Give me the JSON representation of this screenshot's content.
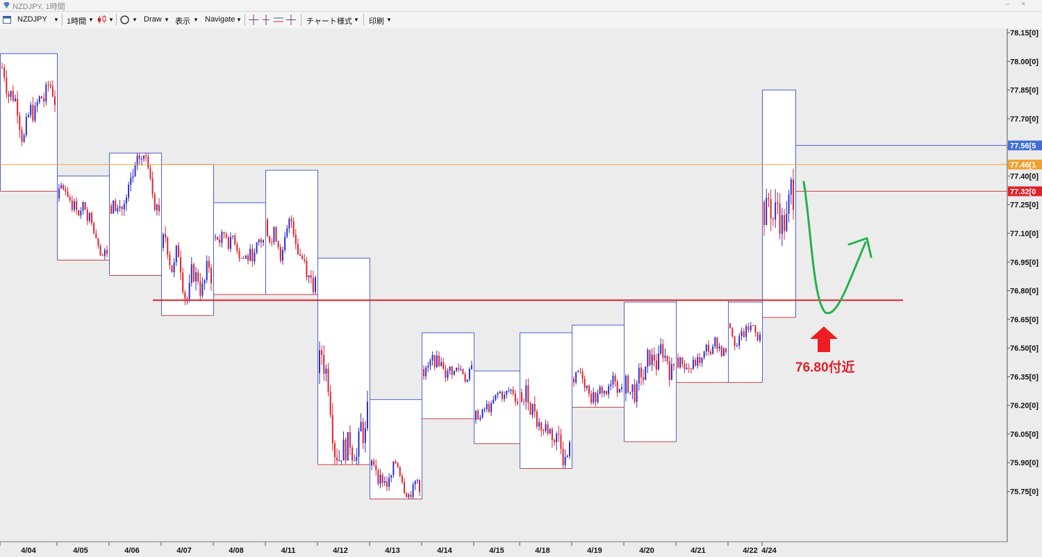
{
  "window": {
    "title": "NZDJPY, 1時間",
    "minimize": "–",
    "close": "×"
  },
  "toolbar": {
    "symbol": "NZDJPY",
    "timeframe": "1時間",
    "draw": "Draw",
    "display": "表示",
    "navigate": "Navigate",
    "chart_style": "チャート様式",
    "print": "印刷"
  },
  "colors": {
    "bull": "#2b2bcf",
    "bear": "#e0202a",
    "bid_line": "#f0a030",
    "support": "#e0202a",
    "arrow_up": "#ee1c24",
    "annotation": "#e0202a",
    "green_curve": "#22b14c"
  },
  "annotation": {
    "support_label": "76.80付近"
  },
  "price_tags": {
    "ask": "77.56[5",
    "last": "77.46[1",
    "bid": "77.32[0"
  },
  "chart_data": {
    "type": "candlestick",
    "symbol": "NZDJPY",
    "timeframe": "1時間",
    "y_ticks": [
      78.15,
      78.0,
      77.85,
      77.7,
      77.55,
      77.4,
      77.25,
      77.1,
      76.95,
      76.8,
      76.65,
      76.5,
      76.35,
      76.2,
      76.05,
      75.9,
      75.75
    ],
    "y_tick_labels": [
      "78.15[0]",
      "78.00[0]",
      "77.85[0]",
      "77.70[0]",
      "",
      "77.40[0]",
      "77.25[0]",
      "77.10[0]",
      "76.95[0]",
      "76.80[0]",
      "76.65[0]",
      "76.50[0]",
      "76.35[0]",
      "76.20[0]",
      "76.05[0]",
      "75.90[0]",
      "75.75[0]"
    ],
    "ylim": [
      75.68,
      78.18
    ],
    "x_labels": [
      "4/04",
      "4/05",
      "4/06",
      "4/07",
      "4/08",
      "4/11",
      "4/12",
      "4/13",
      "4/14",
      "4/15",
      "4/18",
      "4/19",
      "4/20",
      "4/21",
      "4/22",
      "4/24"
    ],
    "support_level": 76.75,
    "current_prices": {
      "ask": 77.56,
      "last": 77.46,
      "bid": 77.32
    },
    "daily_ranges": [
      {
        "high": 78.04,
        "low": 77.32
      },
      {
        "high": 77.4,
        "low": 76.96
      },
      {
        "high": 77.52,
        "low": 76.88
      },
      {
        "high": 77.46,
        "low": 76.67
      },
      {
        "high": 77.26,
        "low": 76.78
      },
      {
        "high": 77.43,
        "low": 76.78
      },
      {
        "high": 76.97,
        "low": 75.89
      },
      {
        "high": 76.23,
        "low": 75.71
      },
      {
        "high": 76.58,
        "low": 76.13
      },
      {
        "high": 76.38,
        "low": 76.0
      },
      {
        "high": 76.58,
        "low": 75.87
      },
      {
        "high": 76.62,
        "low": 76.19
      },
      {
        "high": 76.74,
        "low": 76.01
      },
      {
        "high": 76.75,
        "low": 76.32
      },
      {
        "high": 76.74,
        "low": 76.32
      },
      {
        "high": 77.85,
        "low": 76.66
      }
    ]
  }
}
